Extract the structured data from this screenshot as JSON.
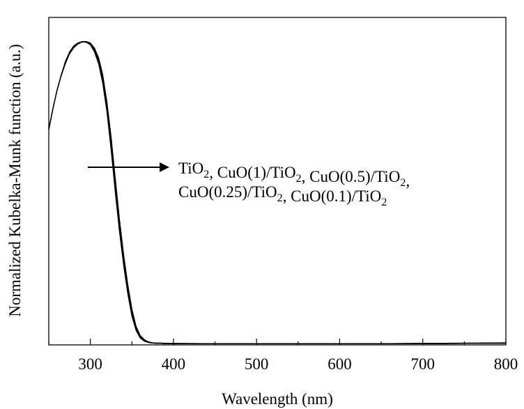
{
  "chart_data": {
    "type": "line",
    "title": "",
    "xlabel": "Wavelength (nm)",
    "ylabel": "Normalized Kubelka-Munk function (a.u.)",
    "xlim": [
      250,
      800
    ],
    "ylim": [
      0,
      1.08
    ],
    "x_major_ticks": [
      300,
      400,
      500,
      600,
      700,
      800
    ],
    "x_tick_labels": [
      "300",
      "400",
      "500",
      "600",
      "700",
      "800"
    ],
    "x_minor_step": 50,
    "y_tick_labels_shown": false,
    "grid": false,
    "legend": "none",
    "line_color": "#000000",
    "annotation": {
      "arrow": true,
      "line1": [
        {
          "text": "TiO"
        },
        {
          "text": "2",
          "sub": true
        },
        {
          "text": ", CuO(1)/TiO"
        },
        {
          "text": "2",
          "sub": true
        },
        {
          "text": ", CuO(0.5)/TiO"
        },
        {
          "text": "2",
          "sub": true
        },
        {
          "text": ","
        }
      ],
      "line2": [
        {
          "text": "CuO(0.25)/TiO"
        },
        {
          "text": "2",
          "sub": true
        },
        {
          "text": ", CuO(0.1)/TiO"
        },
        {
          "text": "2",
          "sub": true
        }
      ]
    },
    "x": [
      250,
      255,
      260,
      265,
      270,
      275,
      280,
      285,
      290,
      295,
      300,
      305,
      310,
      315,
      320,
      325,
      330,
      335,
      340,
      345,
      350,
      355,
      360,
      365,
      370,
      375,
      380,
      385,
      390,
      400,
      450,
      500,
      550,
      600,
      650,
      700,
      750,
      800
    ],
    "series": [
      {
        "values": [
          0.71,
          0.78,
          0.84,
          0.89,
          0.935,
          0.965,
          0.985,
          0.995,
          1.0,
          1.0,
          0.995,
          0.975,
          0.94,
          0.88,
          0.79,
          0.67,
          0.53,
          0.4,
          0.29,
          0.19,
          0.11,
          0.058,
          0.028,
          0.015,
          0.009,
          0.007,
          0.006,
          0.006,
          0.005,
          0.005,
          0.004,
          0.004,
          0.004,
          0.004,
          0.004,
          0.005,
          0.006,
          0.007
        ]
      },
      {
        "values": [
          0.71,
          0.78,
          0.84,
          0.89,
          0.93,
          0.962,
          0.982,
          0.994,
          1.0,
          1.0,
          0.994,
          0.973,
          0.937,
          0.875,
          0.782,
          0.66,
          0.52,
          0.39,
          0.28,
          0.18,
          0.102,
          0.052,
          0.025,
          0.013,
          0.008,
          0.006,
          0.005,
          0.005,
          0.005,
          0.004,
          0.004,
          0.004,
          0.004,
          0.004,
          0.004,
          0.004,
          0.005,
          0.006
        ]
      },
      {
        "values": [
          0.71,
          0.78,
          0.84,
          0.888,
          0.928,
          0.96,
          0.98,
          0.992,
          0.999,
          1.0,
          0.996,
          0.979,
          0.946,
          0.89,
          0.8,
          0.685,
          0.55,
          0.415,
          0.3,
          0.2,
          0.118,
          0.062,
          0.031,
          0.017,
          0.01,
          0.007,
          0.006,
          0.006,
          0.005,
          0.005,
          0.004,
          0.004,
          0.004,
          0.004,
          0.004,
          0.005,
          0.005,
          0.006
        ]
      },
      {
        "values": [
          0.71,
          0.78,
          0.84,
          0.89,
          0.932,
          0.963,
          0.984,
          0.995,
          1.0,
          0.999,
          0.992,
          0.97,
          0.932,
          0.868,
          0.775,
          0.65,
          0.51,
          0.38,
          0.27,
          0.175,
          0.098,
          0.05,
          0.024,
          0.013,
          0.008,
          0.006,
          0.005,
          0.005,
          0.004,
          0.004,
          0.004,
          0.004,
          0.004,
          0.004,
          0.004,
          0.004,
          0.005,
          0.005
        ]
      },
      {
        "values": [
          0.71,
          0.78,
          0.84,
          0.89,
          0.934,
          0.966,
          0.986,
          0.996,
          1.0,
          0.998,
          0.99,
          0.966,
          0.927,
          0.862,
          0.768,
          0.643,
          0.505,
          0.375,
          0.265,
          0.17,
          0.095,
          0.048,
          0.023,
          0.012,
          0.008,
          0.006,
          0.005,
          0.005,
          0.004,
          0.004,
          0.004,
          0.004,
          0.004,
          0.004,
          0.004,
          0.004,
          0.005,
          0.005
        ]
      }
    ]
  }
}
